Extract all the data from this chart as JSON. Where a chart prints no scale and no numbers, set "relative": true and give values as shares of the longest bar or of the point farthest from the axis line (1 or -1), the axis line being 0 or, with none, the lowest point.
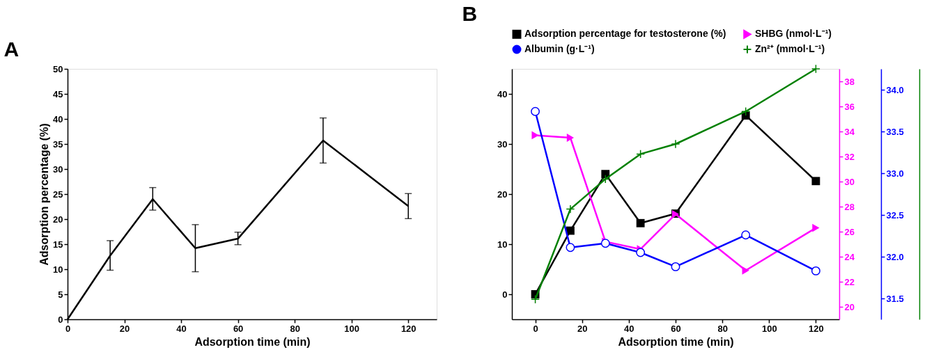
{
  "chart_data": [
    {
      "type": "line",
      "title": "A",
      "xlabel": "Adsorption time (min)",
      "ylabel": "Adsorption percentage (%)",
      "x": [
        0,
        15,
        30,
        45,
        60,
        90,
        120
      ],
      "series": [
        {
          "color": "#000000",
          "values": [
            0,
            12.7,
            24.0,
            14.2,
            16.1,
            35.7,
            22.6
          ],
          "errors": [
            null,
            [
              9.8,
              15.7
            ],
            [
              21.8,
              26.3
            ],
            [
              9.5,
              18.9
            ],
            [
              14.9,
              17.4
            ],
            [
              31.2,
              40.2
            ],
            [
              20.1,
              25.1
            ]
          ]
        }
      ],
      "xlim": [
        0,
        130
      ],
      "xticks": [
        0,
        20,
        40,
        60,
        80,
        100,
        120
      ],
      "ylim": [
        0,
        50
      ],
      "yticks": [
        0,
        5,
        10,
        15,
        20,
        25,
        30,
        35,
        40,
        45,
        50
      ],
      "grid": false,
      "legend": false,
      "marker": "none"
    },
    {
      "type": "line",
      "title": "B",
      "xlabel": "Adsorption time (min)",
      "x": [
        0,
        15,
        30,
        45,
        60,
        90,
        120
      ],
      "series": [
        {
          "name": "Adsorption percentage for testosterone (%)",
          "color": "#000000",
          "marker": "square",
          "values": [
            0,
            12.7,
            24.0,
            14.2,
            16.1,
            35.7,
            22.6
          ]
        },
        {
          "name": "SHBG  (nmol·L⁻¹)",
          "color": "#ff00ff",
          "marker": "triangle",
          "axis": "y2",
          "values": [
            33.7,
            33.5,
            25.2,
            24.6,
            27.4,
            22.9,
            26.3
          ]
        },
        {
          "name": "Albumin (g·L⁻¹)",
          "color": "#0000ff",
          "marker": "circle",
          "axis": "y3",
          "values": [
            33.74,
            32.11,
            32.16,
            32.05,
            31.88,
            32.26,
            31.83
          ]
        }
      ],
      "xlim": [
        -10,
        130
      ],
      "xticks": [
        0,
        20,
        40,
        60,
        80,
        100,
        120
      ],
      "ylim": [
        -5,
        45
      ],
      "yticks": [
        0,
        10,
        20,
        30,
        40
      ],
      "y2lim": [
        19,
        39
      ],
      "y2ticks": [
        20,
        22,
        24,
        26,
        28,
        30,
        32,
        34,
        36,
        38
      ],
      "y3lim": [
        31.25,
        34.25
      ],
      "y3ticks": [
        31.5,
        {
          "value": 32,
          "label": "32.0"
        },
        32.5,
        {
          "value": 33,
          "label": "33.0"
        },
        33.5,
        {
          "value": 34,
          "label": "34.0"
        }
      ],
      "grid": false,
      "legend": "top"
    },
    {
      "type": "line",
      "relative": true,
      "x": [
        0,
        15,
        30,
        45,
        60,
        90,
        120
      ],
      "xlim": [
        -10,
        130
      ],
      "series": [
        {
          "name": "Zn²⁺ (mmol·L⁻¹)",
          "color": "#008000",
          "marker": "cross",
          "values": [
            0.08,
            0.44,
            0.56,
            0.66,
            0.7,
            0.83,
            1
          ]
        }
      ]
    }
  ]
}
